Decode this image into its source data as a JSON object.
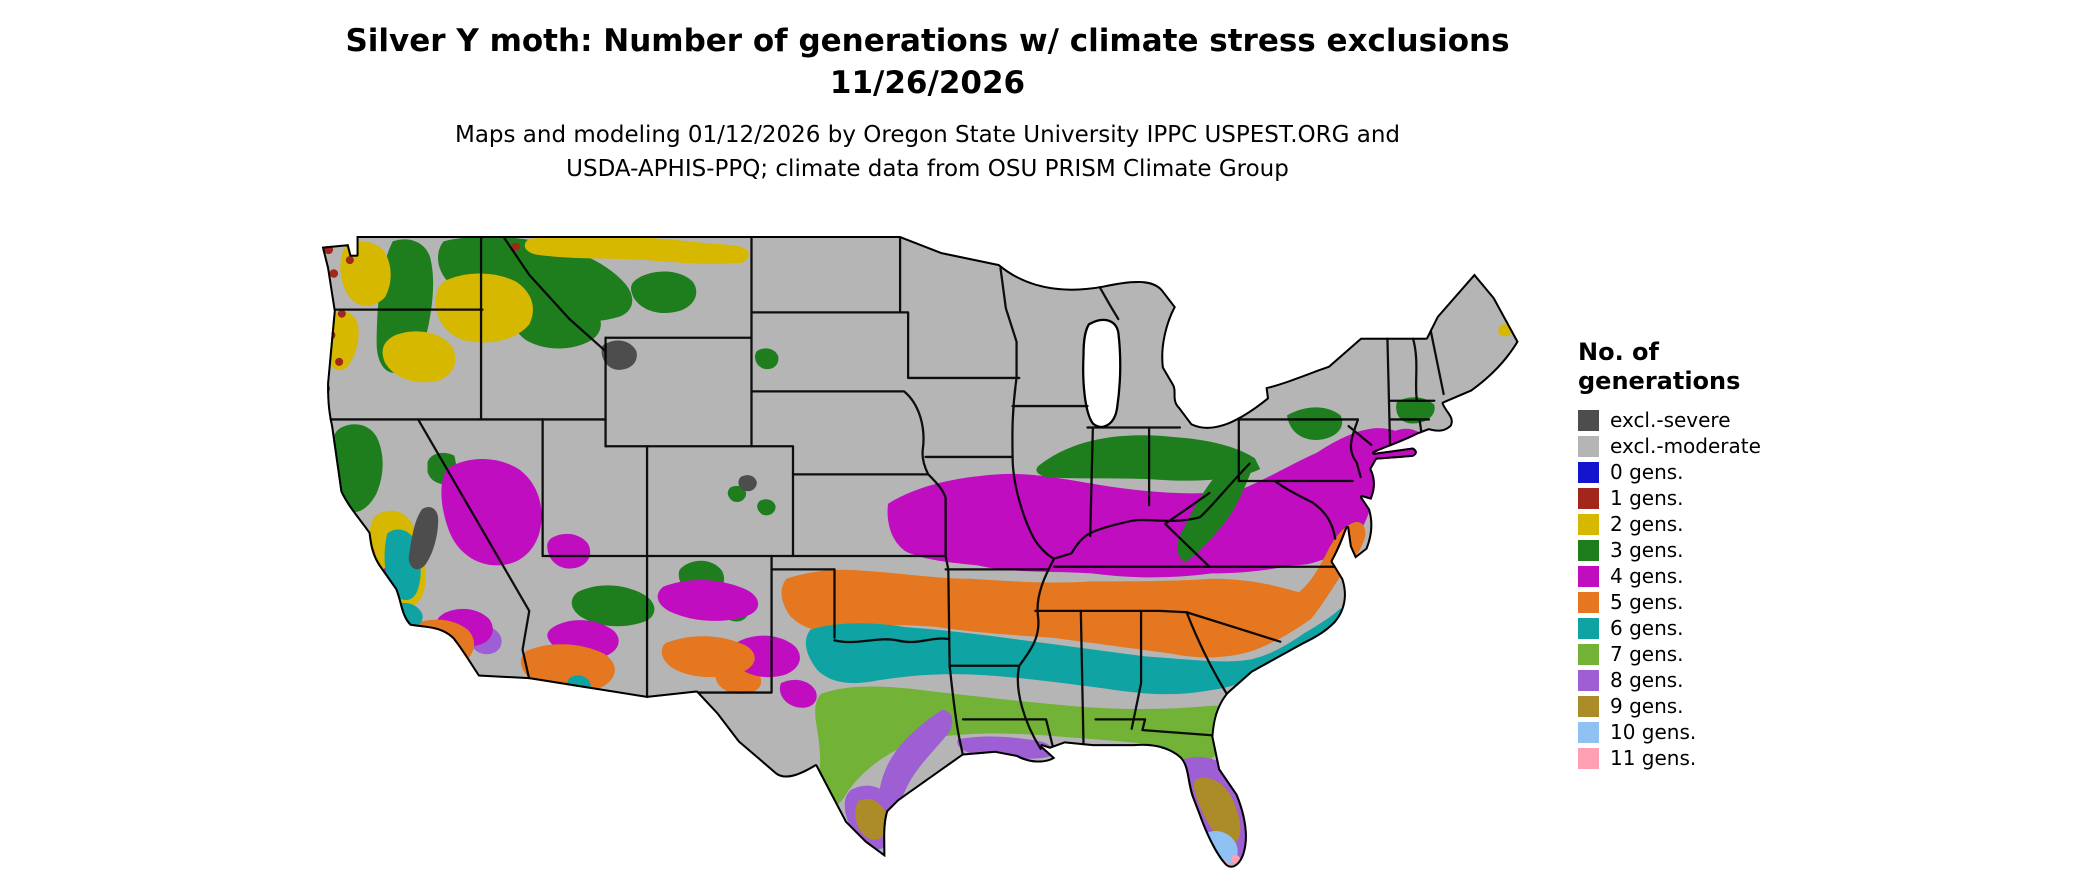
{
  "title": {
    "line1": "Silver Y moth: Number of generations w/ climate stress exclusions",
    "line2": "11/26/2026"
  },
  "subtitle": {
    "line1": "Maps and modeling 01/12/2026 by Oregon State University IPPC USPEST.ORG and",
    "line2": "USDA-APHIS-PPQ; climate data from OSU PRISM Climate Group"
  },
  "legend": {
    "heading_line1": "No. of",
    "heading_line2": "generations",
    "items": [
      {
        "key": "exclSevere",
        "label": "excl.-severe",
        "color": "#4d4d4d"
      },
      {
        "key": "exclModerate",
        "label": "excl.-moderate",
        "color": "#b5b5b5"
      },
      {
        "key": "g0",
        "label": "0 gens.",
        "color": "#1414cc"
      },
      {
        "key": "g1",
        "label": "1 gens.",
        "color": "#a3261a"
      },
      {
        "key": "g2",
        "label": "2 gens.",
        "color": "#d6b800"
      },
      {
        "key": "g3",
        "label": "3 gens.",
        "color": "#1e7e1e"
      },
      {
        "key": "g4",
        "label": "4 gens.",
        "color": "#bf0dbf"
      },
      {
        "key": "g5",
        "label": "5 gens.",
        "color": "#e4771f"
      },
      {
        "key": "g6",
        "label": "6 gens.",
        "color": "#0fa3a3"
      },
      {
        "key": "g7",
        "label": "7 gens.",
        "color": "#72b236"
      },
      {
        "key": "g8",
        "label": "8 gens.",
        "color": "#9d5fd3"
      },
      {
        "key": "g9",
        "label": "9 gens.",
        "color": "#ab8c28"
      },
      {
        "key": "g10",
        "label": "10 gens.",
        "color": "#8fc1f2"
      },
      {
        "key": "g11",
        "label": "11 gens.",
        "color": "#ff9fb4"
      }
    ]
  },
  "map": {
    "region": "Contiguous United States",
    "border_color": "#000000",
    "background": "#ffffff"
  }
}
